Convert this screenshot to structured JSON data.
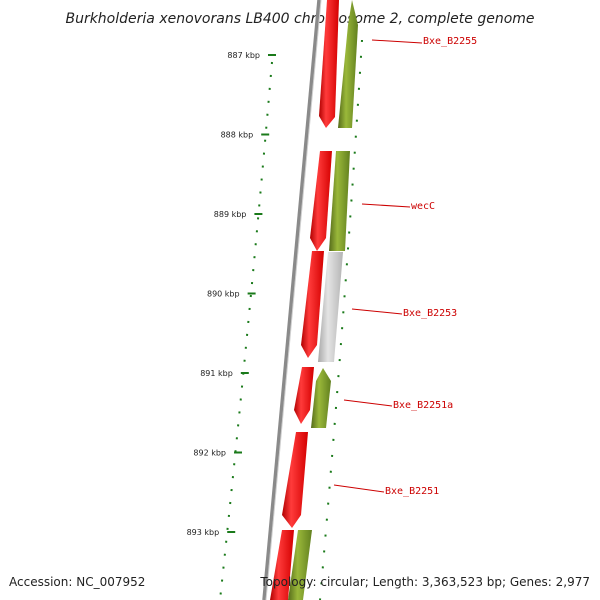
{
  "title": "Burkholderia xenovorans LB400 chromosome 2, complete genome",
  "accession": "Accession: NC_007952",
  "summary": "Topology: circular; Length: 3,363,523 bp; Genes: 2,977",
  "colors": {
    "forward_gene": "#e60000",
    "reverse_gene": "#6b8e23",
    "pseudo_gene": "#c8c8c8",
    "backbone": "#777777",
    "ruler": "#1a7a1a",
    "label": "#cc0000"
  },
  "ruler_ticks": [
    {
      "label": "887 kbp",
      "kbp": 887
    },
    {
      "label": "888 kbp",
      "kbp": 888
    },
    {
      "label": "889 kbp",
      "kbp": 889
    },
    {
      "label": "890 kbp",
      "kbp": 890
    },
    {
      "label": "891 kbp",
      "kbp": 891
    },
    {
      "label": "892 kbp",
      "kbp": 892
    },
    {
      "label": "893 kbp",
      "kbp": 893
    }
  ],
  "gene_labels": [
    "Bxe_B2255",
    "wecC",
    "Bxe_B2253",
    "Bxe_B2251a",
    "Bxe_B2251"
  ]
}
